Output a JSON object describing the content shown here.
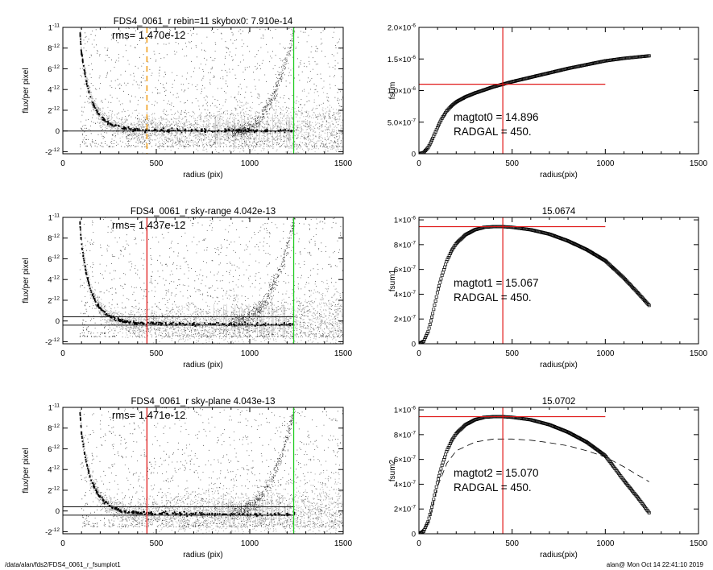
{
  "footer": {
    "left": "/data/alan/fds2/FDS4_0061_r_fsumplot1",
    "right": "alan@  Mon Oct 14 22:41:10 2019"
  },
  "colors": {
    "cloud": "#a8a8a8",
    "points": "#222222",
    "red": "#e01818",
    "green": "#22cc22",
    "orange": "#f0a020"
  },
  "chart_data": [
    {
      "type": "scatter",
      "title": "FDS4_0061_r rebin=11    skybox0:  7.910e-14",
      "annotation": "rms= 1.470e-12",
      "xlabel": "radius (pix)",
      "ylabel": "flux/per pixel",
      "xlim": [
        0,
        1500
      ],
      "ylim": [
        -2.2e-12,
        1e-11
      ],
      "xticks": [
        0,
        500,
        1000,
        1500
      ],
      "yticks": [
        {
          "v": -2e-12,
          "m": "-2",
          "e": "-12"
        },
        {
          "v": 0,
          "m": "0",
          "e": ""
        },
        {
          "v": 2e-12,
          "m": "2",
          "e": "-12"
        },
        {
          "v": 4e-12,
          "m": "4",
          "e": "-12"
        },
        {
          "v": 6e-12,
          "m": "6",
          "e": "-12"
        },
        {
          "v": 8e-12,
          "m": "8",
          "e": "-12"
        },
        {
          "v": 1e-11,
          "m": "1",
          "e": "-11"
        }
      ],
      "hlines": [
        0.0
      ],
      "vlines": [
        {
          "x": 450,
          "style": "orange-dashed"
        },
        {
          "x": 1235,
          "style": "green"
        }
      ],
      "profile": [
        [
          90,
          1e-11
        ],
        [
          100,
          7.5e-12
        ],
        [
          125,
          4.8e-12
        ],
        [
          150,
          3.1e-12
        ],
        [
          175,
          2.1e-12
        ],
        [
          200,
          1.4e-12
        ],
        [
          250,
          7e-13
        ],
        [
          300,
          3.5e-13
        ],
        [
          350,
          2e-13
        ],
        [
          400,
          1e-13
        ],
        [
          500,
          5e-14
        ],
        [
          700,
          3e-14
        ],
        [
          900,
          2e-14
        ],
        [
          1100,
          1e-14
        ],
        [
          1240,
          0.0
        ]
      ]
    },
    {
      "type": "scatter",
      "title": "FDS4_0061_r sky-range  4.042e-13",
      "annotation": "rms= 1.437e-12",
      "xlabel": "radius (pix)",
      "ylabel": "flux/per pixel",
      "xlim": [
        0,
        1500
      ],
      "ylim": [
        -2.2e-12,
        1e-11
      ],
      "xticks": [
        0,
        500,
        1000,
        1500
      ],
      "yticks": [
        {
          "v": -2e-12,
          "m": "-2",
          "e": "-12"
        },
        {
          "v": 0,
          "m": "0",
          "e": ""
        },
        {
          "v": 2e-12,
          "m": "2",
          "e": "-12"
        },
        {
          "v": 4e-12,
          "m": "4",
          "e": "-12"
        },
        {
          "v": 6e-12,
          "m": "6",
          "e": "-12"
        },
        {
          "v": 8e-12,
          "m": "8",
          "e": "-12"
        },
        {
          "v": 1e-11,
          "m": "1",
          "e": "-11"
        }
      ],
      "hlines": [
        4.04e-13,
        -4.04e-13
      ],
      "vlines": [
        {
          "x": 450,
          "style": "red"
        },
        {
          "x": 1235,
          "style": "green"
        }
      ],
      "profile": [
        [
          90,
          1e-11
        ],
        [
          100,
          7.3e-12
        ],
        [
          125,
          4.6e-12
        ],
        [
          150,
          2.9e-12
        ],
        [
          175,
          1.9e-12
        ],
        [
          200,
          1.2e-12
        ],
        [
          250,
          4.5e-13
        ],
        [
          300,
          5e-14
        ],
        [
          350,
          -1.5e-13
        ],
        [
          400,
          -2.2e-13
        ],
        [
          600,
          -2.8e-13
        ],
        [
          900,
          -3.2e-13
        ],
        [
          1240,
          -3.4e-13
        ]
      ]
    },
    {
      "type": "scatter",
      "title": "FDS4_0061_r sky-plane  4.043e-13",
      "annotation": "rms= 1.471e-12",
      "xlabel": "radius (pix)",
      "ylabel": "flux/per pixel",
      "xlim": [
        0,
        1500
      ],
      "ylim": [
        -2.2e-12,
        1e-11
      ],
      "xticks": [
        0,
        500,
        1000,
        1500
      ],
      "yticks": [
        {
          "v": -2e-12,
          "m": "-2",
          "e": "-12"
        },
        {
          "v": 0,
          "m": "0",
          "e": ""
        },
        {
          "v": 2e-12,
          "m": "2",
          "e": "-12"
        },
        {
          "v": 4e-12,
          "m": "4",
          "e": "-12"
        },
        {
          "v": 6e-12,
          "m": "6",
          "e": "-12"
        },
        {
          "v": 8e-12,
          "m": "8",
          "e": "-12"
        },
        {
          "v": 1e-11,
          "m": "1",
          "e": "-11"
        }
      ],
      "hlines": [
        4.04e-13,
        -4.04e-13
      ],
      "vlines": [
        {
          "x": 450,
          "style": "red"
        },
        {
          "x": 1235,
          "style": "green"
        }
      ],
      "profile": [
        [
          90,
          1e-11
        ],
        [
          100,
          7.4e-12
        ],
        [
          125,
          4.7e-12
        ],
        [
          150,
          3e-12
        ],
        [
          175,
          2e-12
        ],
        [
          200,
          1.3e-12
        ],
        [
          250,
          5e-13
        ],
        [
          300,
          8e-14
        ],
        [
          350,
          -1.2e-13
        ],
        [
          400,
          -2e-13
        ],
        [
          600,
          -2.6e-13
        ],
        [
          900,
          -3e-13
        ],
        [
          1240,
          -3.3e-13
        ]
      ]
    },
    {
      "type": "line",
      "title": "",
      "xlabel": "radius(pix)",
      "ylabel": "fsum",
      "xlim": [
        0,
        1500
      ],
      "ylim": [
        0,
        2e-06
      ],
      "xticks": [
        0,
        500,
        1000,
        1500
      ],
      "yticks": [
        {
          "v": 0,
          "m": "0",
          "e": ""
        },
        {
          "v": 5e-07,
          "m": "5.0×10",
          "e": "-7"
        },
        {
          "v": 1e-06,
          "m": "1.0×10",
          "e": "-6"
        },
        {
          "v": 1.5e-06,
          "m": "1.5×10",
          "e": "-6"
        },
        {
          "v": 2e-06,
          "m": "2.0×10",
          "e": "-6"
        }
      ],
      "label_lines": [
        "magtot0 = 14.896",
        "RADGAL =     450."
      ],
      "crosshair": {
        "x": 450,
        "y": 1.1e-06,
        "xmax": 1000
      },
      "curve": [
        [
          0,
          0
        ],
        [
          25,
          2e-08
        ],
        [
          50,
          1e-07
        ],
        [
          75,
          2.5e-07
        ],
        [
          100,
          4.2e-07
        ],
        [
          125,
          5.7e-07
        ],
        [
          150,
          6.8e-07
        ],
        [
          175,
          7.6e-07
        ],
        [
          200,
          8.2e-07
        ],
        [
          250,
          9e-07
        ],
        [
          300,
          9.6e-07
        ],
        [
          350,
          1.01e-06
        ],
        [
          400,
          1.06e-06
        ],
        [
          450,
          1.1e-06
        ],
        [
          500,
          1.14e-06
        ],
        [
          600,
          1.21e-06
        ],
        [
          700,
          1.28e-06
        ],
        [
          800,
          1.35e-06
        ],
        [
          900,
          1.41e-06
        ],
        [
          1000,
          1.47e-06
        ],
        [
          1100,
          1.51e-06
        ],
        [
          1235,
          1.55e-06
        ]
      ],
      "secondary_curve": []
    },
    {
      "type": "line",
      "title": "15.0674",
      "xlabel": "radius(pix)",
      "ylabel": "fsum1",
      "xlim": [
        0,
        1500
      ],
      "ylim": [
        0,
        1.02e-06
      ],
      "xticks": [
        0,
        500,
        1000,
        1500
      ],
      "yticks": [
        {
          "v": 0,
          "m": "0",
          "e": ""
        },
        {
          "v": 2e-07,
          "m": "2×10",
          "e": "-7"
        },
        {
          "v": 4e-07,
          "m": "4×10",
          "e": "-7"
        },
        {
          "v": 6e-07,
          "m": "6×10",
          "e": "-7"
        },
        {
          "v": 8e-07,
          "m": "8×10",
          "e": "-7"
        },
        {
          "v": 1e-06,
          "m": "1×10",
          "e": "-6"
        }
      ],
      "label_lines": [
        "magtot1 = 15.067",
        "RADGAL =     450."
      ],
      "crosshair": {
        "x": 450,
        "y": 9.45e-07,
        "xmax": 1000
      },
      "curve": [
        [
          0,
          0
        ],
        [
          25,
          2e-08
        ],
        [
          50,
          1e-07
        ],
        [
          75,
          2.5e-07
        ],
        [
          100,
          4.2e-07
        ],
        [
          125,
          5.6e-07
        ],
        [
          150,
          6.7e-07
        ],
        [
          175,
          7.5e-07
        ],
        [
          200,
          8.1e-07
        ],
        [
          250,
          8.8e-07
        ],
        [
          300,
          9.2e-07
        ],
        [
          350,
          9.4e-07
        ],
        [
          400,
          9.45e-07
        ],
        [
          450,
          9.45e-07
        ],
        [
          500,
          9.4e-07
        ],
        [
          600,
          9.2e-07
        ],
        [
          700,
          8.85e-07
        ],
        [
          800,
          8.3e-07
        ],
        [
          900,
          7.6e-07
        ],
        [
          1000,
          6.7e-07
        ],
        [
          1100,
          5.3e-07
        ],
        [
          1175,
          4.1e-07
        ],
        [
          1235,
          3.1e-07
        ]
      ],
      "secondary_curve": []
    },
    {
      "type": "line",
      "title": "15.0702",
      "xlabel": "radius(pix)",
      "ylabel": "fsum2",
      "xlim": [
        0,
        1500
      ],
      "ylim": [
        0,
        1.02e-06
      ],
      "xticks": [
        0,
        500,
        1000,
        1500
      ],
      "yticks": [
        {
          "v": 0,
          "m": "0",
          "e": ""
        },
        {
          "v": 2e-07,
          "m": "2×10",
          "e": "-7"
        },
        {
          "v": 4e-07,
          "m": "4×10",
          "e": "-7"
        },
        {
          "v": 6e-07,
          "m": "6×10",
          "e": "-7"
        },
        {
          "v": 8e-07,
          "m": "8×10",
          "e": "-7"
        },
        {
          "v": 1e-06,
          "m": "1×10",
          "e": "-6"
        }
      ],
      "label_lines": [
        "magtot2 = 15.070",
        "RADGAL =     450."
      ],
      "crosshair": {
        "x": 450,
        "y": 9.45e-07,
        "xmax": 1000
      },
      "curve": [
        [
          0,
          0
        ],
        [
          25,
          2e-08
        ],
        [
          50,
          1e-07
        ],
        [
          75,
          2.5e-07
        ],
        [
          100,
          4.2e-07
        ],
        [
          125,
          5.6e-07
        ],
        [
          150,
          6.7e-07
        ],
        [
          175,
          7.5e-07
        ],
        [
          200,
          8.1e-07
        ],
        [
          250,
          8.8e-07
        ],
        [
          300,
          9.2e-07
        ],
        [
          350,
          9.4e-07
        ],
        [
          400,
          9.45e-07
        ],
        [
          450,
          9.45e-07
        ],
        [
          500,
          9.4e-07
        ],
        [
          600,
          9.2e-07
        ],
        [
          700,
          8.8e-07
        ],
        [
          800,
          8.2e-07
        ],
        [
          900,
          7.4e-07
        ],
        [
          1000,
          6.3e-07
        ],
        [
          1100,
          4.3e-07
        ],
        [
          1175,
          2.9e-07
        ],
        [
          1235,
          1.7e-07
        ]
      ],
      "secondary_curve": [
        [
          0,
          0
        ],
        [
          50,
          9e-08
        ],
        [
          100,
          3.8e-07
        ],
        [
          150,
          5.7e-07
        ],
        [
          200,
          6.7e-07
        ],
        [
          300,
          7.4e-07
        ],
        [
          400,
          7.65e-07
        ],
        [
          500,
          7.65e-07
        ],
        [
          600,
          7.55e-07
        ],
        [
          700,
          7.35e-07
        ],
        [
          800,
          7.1e-07
        ],
        [
          900,
          6.7e-07
        ],
        [
          1000,
          6.2e-07
        ],
        [
          1100,
          5.4e-07
        ],
        [
          1235,
          4.2e-07
        ]
      ]
    }
  ]
}
